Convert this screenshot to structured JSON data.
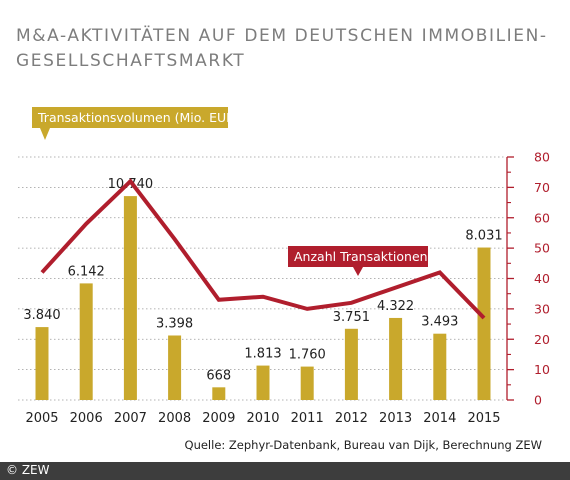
{
  "title": "M&A-AKTIVITÄTEN AUF DEM DEUTSCHEN IMMOBILIEN-GESELLSCHAFTSMARKT",
  "source": "Quelle: Zephyr-Datenbank, Bureau van Dijk, Berechnung ZEW",
  "footer": "© ZEW",
  "colors": {
    "bars": "#c9a82c",
    "line": "#b01e2d",
    "title": "#7d7d7d",
    "footer_bg": "#3d3d3d"
  },
  "chart_data": {
    "type": "bar",
    "categories": [
      "2005",
      "2006",
      "2007",
      "2008",
      "2009",
      "2010",
      "2011",
      "2012",
      "2013",
      "2014",
      "2015"
    ],
    "series": [
      {
        "name": "Transaktionsvolumen (Mio. EUR)",
        "type": "bar",
        "axis": "left-unlabeled",
        "values": [
          3840,
          6142,
          10740,
          3398,
          668,
          1813,
          1760,
          3751,
          4322,
          3493,
          8031
        ],
        "labels": [
          "3.840",
          "6.142",
          "10.740",
          "3.398",
          "668",
          "1.813",
          "1.760",
          "3.751",
          "4.322",
          "3.493",
          "8.031"
        ]
      },
      {
        "name": "Anzahl Transaktionen",
        "type": "line",
        "axis": "right",
        "values": [
          42,
          58,
          72,
          53,
          33,
          34,
          30,
          32,
          37,
          42,
          27
        ]
      }
    ],
    "bar_axis_range": [
      0,
      12800
    ],
    "y2_ticks": [
      0,
      10,
      20,
      30,
      40,
      50,
      60,
      70,
      80
    ],
    "y2lim": [
      0,
      80
    ],
    "grid": true
  }
}
